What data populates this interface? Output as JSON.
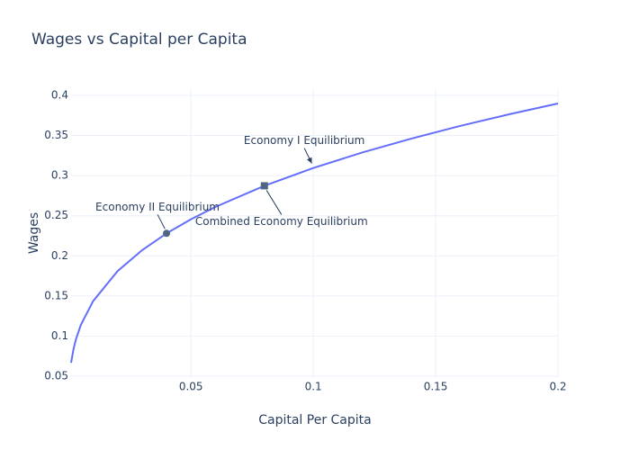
{
  "chart_data": {
    "type": "line",
    "title": "Wages vs Capital per Capita",
    "x_label": "Capital Per Capita",
    "y_label": "Wages",
    "x": [
      0.001,
      0.002,
      0.003,
      0.005,
      0.01,
      0.02,
      0.03,
      0.04,
      0.05,
      0.06,
      0.08,
      0.1,
      0.12,
      0.14,
      0.16,
      0.18,
      0.2
    ],
    "series": [
      {
        "color": "#636efa",
        "values": [
          0.0667,
          0.084,
          0.0962,
          0.114,
          0.1436,
          0.181,
          0.207,
          0.228,
          0.2456,
          0.261,
          0.2873,
          0.3095,
          0.3288,
          0.3461,
          0.3619,
          0.3764,
          0.3899
        ]
      }
    ],
    "markers": [
      {
        "x": 0.04,
        "y": 0.228,
        "symbol": "circle",
        "color": "#506784"
      },
      {
        "x": 0.08,
        "y": 0.2873,
        "symbol": "square",
        "color": "#506784"
      }
    ],
    "annotations": [
      {
        "text": "Economy II Equilibrium",
        "x": 0.04,
        "y": 0.228
      },
      {
        "text": "Combined Economy Equilibrium",
        "x": 0.08,
        "y": 0.2873
      },
      {
        "text": "Economy I Equilibrium",
        "x": 0.1,
        "y": 0.3095
      }
    ],
    "xlim": [
      0.001,
      0.2
    ],
    "ylim": [
      0.05,
      0.4067
    ],
    "xticks": [
      0.05,
      0.1,
      0.15,
      0.2
    ],
    "yticks": [
      0.05,
      0.1,
      0.15,
      0.2,
      0.25,
      0.3,
      0.35,
      0.4
    ],
    "grid": true
  }
}
